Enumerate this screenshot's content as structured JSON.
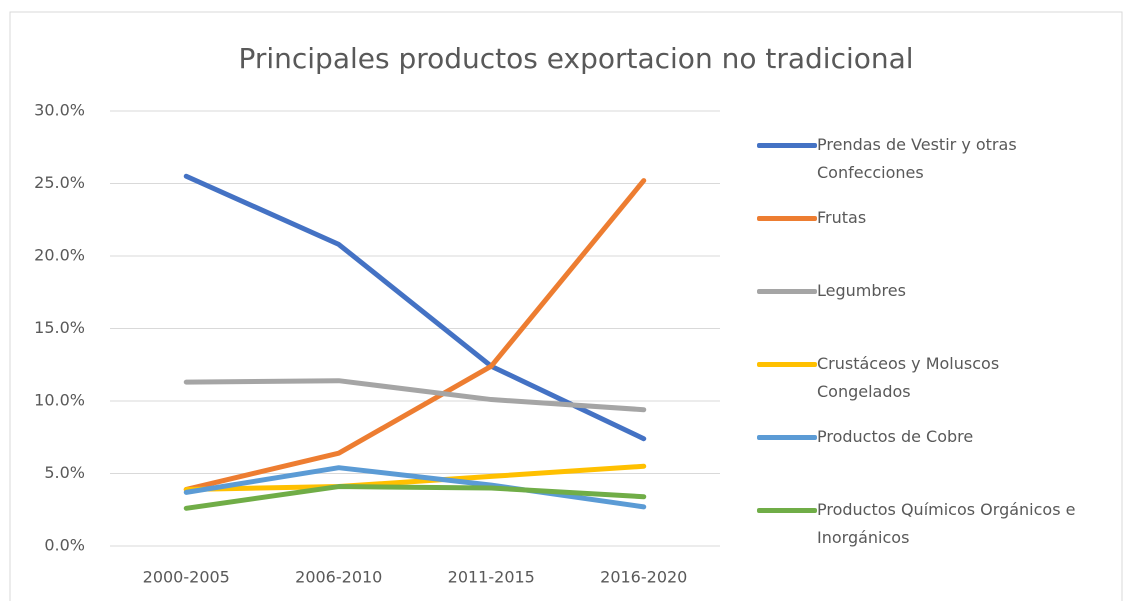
{
  "chart_data": {
    "type": "line",
    "title": "Principales productos exportacion no tradicional",
    "categories": [
      "2000-2005",
      "2006-2010",
      "2011-2015",
      "2016-2020"
    ],
    "series": [
      {
        "name": "Prendas de Vestir y otras Confecciones",
        "color": "#4472c4",
        "values": [
          25.5,
          20.8,
          12.4,
          7.4
        ]
      },
      {
        "name": "Frutas",
        "color": "#ed7d31",
        "values": [
          3.9,
          6.4,
          12.4,
          25.2
        ]
      },
      {
        "name": "Legumbres",
        "color": "#a5a5a5",
        "values": [
          11.3,
          11.4,
          10.1,
          9.4
        ]
      },
      {
        "name": "Crustáceos y Moluscos Congelados",
        "color": "#ffc000",
        "values": [
          3.9,
          4.1,
          4.8,
          5.5
        ]
      },
      {
        "name": "Productos de Cobre",
        "color": "#5b9bd5",
        "values": [
          3.7,
          5.4,
          4.2,
          2.7
        ]
      },
      {
        "name": "Productos Químicos Orgánicos e Inorgánicos",
        "color": "#70ad47",
        "values": [
          2.6,
          4.1,
          4.0,
          3.4
        ]
      }
    ],
    "ylim": [
      0,
      30
    ],
    "yticks": [
      {
        "value": 0,
        "label": "0.0%"
      },
      {
        "value": 5,
        "label": "5.0%"
      },
      {
        "value": 10,
        "label": "10.0%"
      },
      {
        "value": 15,
        "label": "15.0%"
      },
      {
        "value": 20,
        "label": "20.0%"
      },
      {
        "value": 25,
        "label": "25.0%"
      },
      {
        "value": 30,
        "label": "30.0%"
      }
    ],
    "grid": true,
    "legend": "right"
  }
}
